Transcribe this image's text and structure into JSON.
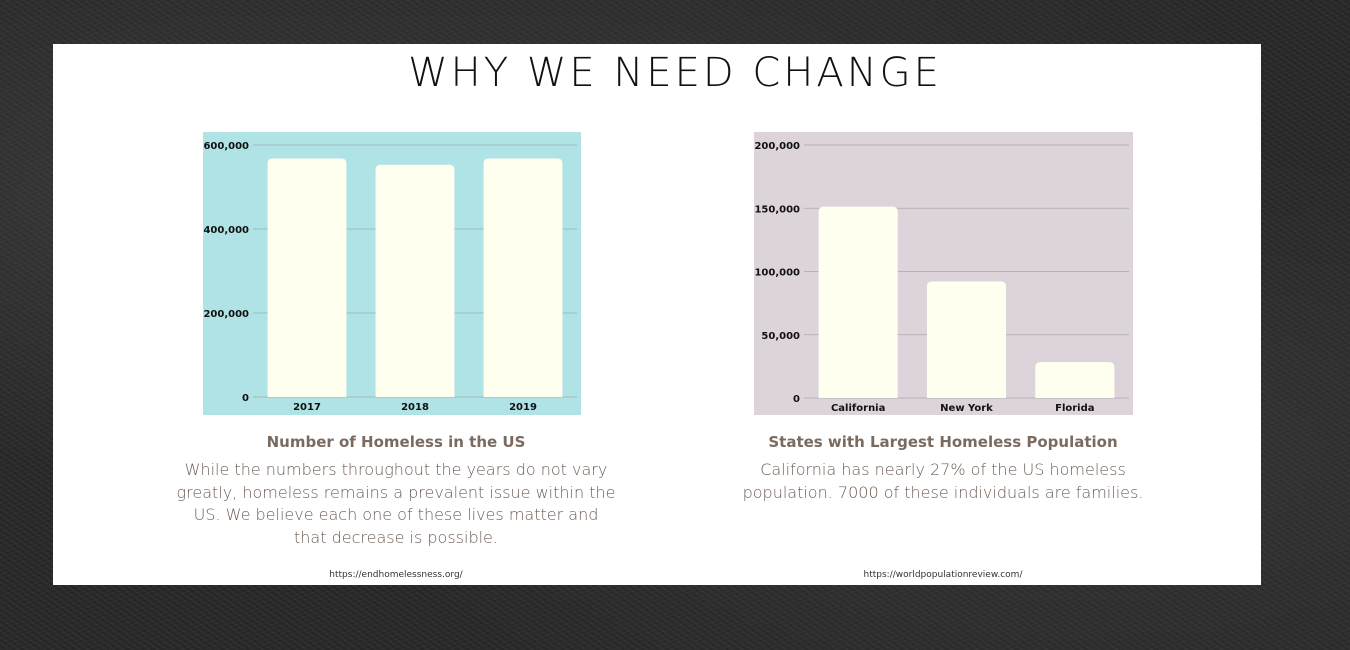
{
  "title": "WHY WE NEED CHANGE",
  "chart_data": [
    {
      "type": "bar",
      "categories": [
        "2017",
        "2018",
        "2019"
      ],
      "values": [
        567715,
        552830,
        567715
      ],
      "ylim": [
        0,
        600000
      ],
      "yticks": [
        0,
        200000,
        400000,
        600000
      ],
      "ytick_labels": [
        "0",
        "200,000",
        "400,000",
        "600,000"
      ],
      "grid": true,
      "background": "#b0e3e6",
      "bar_color": "#fffff0",
      "title": "Number of Homeless in the US",
      "description": "While the numbers throughout the years do not vary greatly, homeless remains a prevalent issue within the US. We believe each one of these lives matter and that decrease is possible.",
      "source": "https://endhomelessness.org/"
    },
    {
      "type": "bar",
      "categories": [
        "California",
        "New York",
        "Florida"
      ],
      "values": [
        151278,
        92091,
        28328
      ],
      "ylim": [
        0,
        200000
      ],
      "yticks": [
        0,
        50000,
        100000,
        150000,
        200000
      ],
      "ytick_labels": [
        "0",
        "50,000",
        "100,000",
        "150,000",
        "200,000"
      ],
      "grid": true,
      "background": "#ddd3db",
      "bar_color": "#fffff0",
      "title": "States with Largest Homeless Population",
      "description": "California has nearly 27% of the US homeless population. 7000 of these individuals are families.",
      "source": "https://worldpopulationreview.com/"
    }
  ]
}
